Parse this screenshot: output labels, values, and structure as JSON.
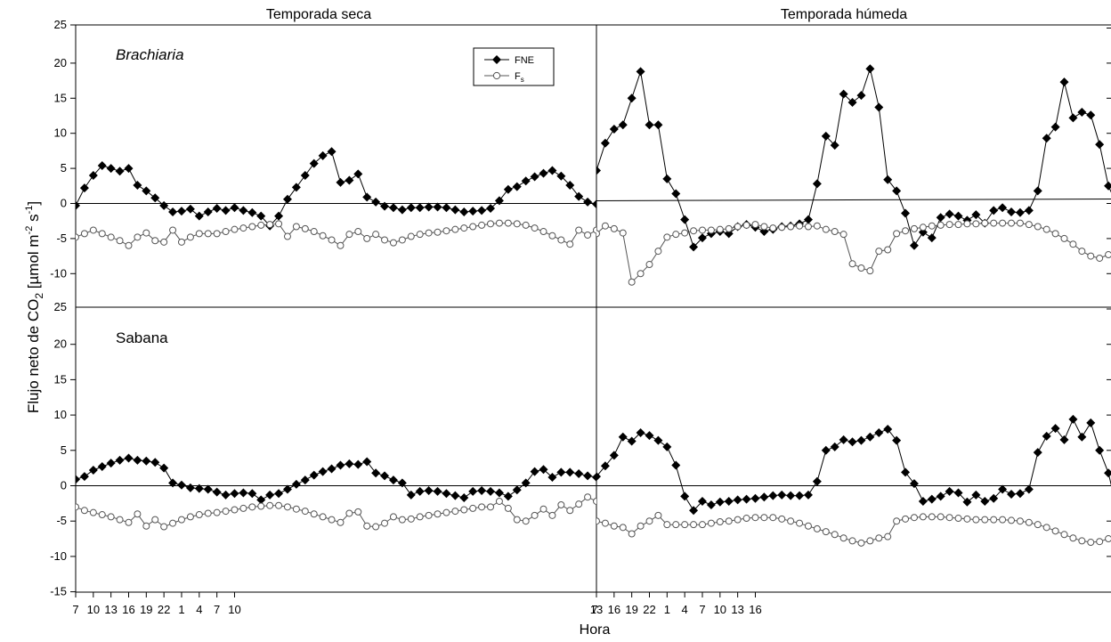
{
  "figure": {
    "xlabel": "Hora",
    "ylabel": "Flujo neto de CO2 [µmol m-2 s-1]",
    "ylabel_parts": {
      "pre": "Flujo neto de CO",
      "sub": "2",
      "mid": " [µmol m",
      "sup1": "-2",
      "mid2": " s",
      "sup2": "-1",
      "post": "]"
    },
    "column_titles": [
      "Temporada seca",
      "Temporada húmeda"
    ],
    "row_labels": [
      "Brachiaria",
      "Sabana"
    ],
    "legend": {
      "fne": "FNE",
      "fs_base": "F",
      "fs_sub": "s"
    },
    "x_tick_labels": [
      "7",
      "10",
      "13",
      "16",
      "19",
      "22",
      "1",
      "4",
      "7",
      "10",
      "13",
      "16",
      "19",
      "22",
      "1",
      "4",
      "7",
      "10",
      "13",
      "16"
    ],
    "top_y_ticks": [
      "25",
      "20",
      "15",
      "10",
      "5",
      "0",
      "-5",
      "-10"
    ],
    "bottom_y_ticks": [
      "25",
      "20",
      "15",
      "10",
      "5",
      "0",
      "-5",
      "-10",
      "-15"
    ],
    "colors": {
      "fne": "#000000",
      "fs": "#555555",
      "axis": "#000000"
    }
  },
  "chart_data": [
    {
      "type": "line",
      "title": "Temporada seca",
      "panel_label": "Brachiaria",
      "xlabel": "Hora",
      "ylim": [
        -12,
        25
      ],
      "x_start_hour": 7,
      "x_step_hours": 1.5,
      "series": [
        {
          "name": "FNE",
          "marker": "filled-diamond",
          "values": [
            -0.3,
            2.2,
            4.0,
            5.4,
            5.0,
            4.6,
            5.0,
            2.6,
            1.8,
            0.8,
            -0.3,
            -1.2,
            -1.1,
            -0.8,
            -1.8,
            -1.2,
            -0.7,
            -1.0,
            -0.6,
            -1.0,
            -1.3,
            -1.8,
            -3.2,
            -1.8,
            0.6,
            2.3,
            4.0,
            5.7,
            6.8,
            7.4,
            3.0,
            3.3,
            4.2,
            0.9,
            0.2,
            -0.4,
            -0.6,
            -0.9,
            -0.6,
            -0.6,
            -0.5,
            -0.5,
            -0.6,
            -0.9,
            -1.2,
            -1.1,
            -1.0,
            -0.7,
            0.4,
            2.0,
            2.4,
            3.2,
            3.8,
            4.3,
            4.7,
            3.9,
            2.6,
            1.0,
            0.2,
            -0.1
          ]
        },
        {
          "name": "Fs",
          "marker": "open-circle",
          "values": [
            -4.8,
            -4.3,
            -3.8,
            -4.3,
            -4.8,
            -5.3,
            -6.0,
            -4.8,
            -4.2,
            -5.3,
            -5.5,
            -3.8,
            -5.5,
            -4.8,
            -4.3,
            -4.3,
            -4.3,
            -4.0,
            -3.7,
            -3.5,
            -3.3,
            -3.1,
            -3.0,
            -2.9,
            -4.7,
            -3.3,
            -3.6,
            -4.0,
            -4.6,
            -5.2,
            -6.0,
            -4.4,
            -4.0,
            -5.0,
            -4.4,
            -5.2,
            -5.6,
            -5.2,
            -4.7,
            -4.4,
            -4.2,
            -4.1,
            -3.9,
            -3.7,
            -3.5,
            -3.3,
            -3.1,
            -2.9,
            -2.8,
            -2.8,
            -2.9,
            -3.1,
            -3.5,
            -4.0,
            -4.6,
            -5.2,
            -5.8,
            -3.8,
            -4.5,
            -3.8,
            -4.3,
            -4.8
          ]
        }
      ]
    },
    {
      "type": "line",
      "title": "Temporada húmeda",
      "panel_label": "Brachiaria",
      "xlabel": "Hora",
      "ylim": [
        -12,
        25
      ],
      "x_start_hour": 7,
      "x_step_hours": 1.5,
      "series": [
        {
          "name": "FNE",
          "marker": "filled-diamond",
          "values": [
            4.7,
            8.6,
            10.6,
            11.2,
            15.0,
            18.8,
            11.2,
            11.2,
            3.5,
            1.4,
            -2.3,
            -6.2,
            -4.9,
            -4.3,
            -4.0,
            -4.3,
            -3.3,
            -3.0,
            -3.4,
            -4.0,
            -3.7,
            -3.3,
            -3.2,
            -2.9,
            -2.3,
            2.8,
            9.6,
            8.3,
            15.6,
            14.4,
            15.4,
            19.2,
            13.7,
            3.4,
            1.8,
            -1.4,
            -6.0,
            -4.1,
            -4.9,
            -2.0,
            -1.5,
            -1.8,
            -2.4,
            -1.6,
            -2.8,
            -1.0,
            -0.6,
            -1.2,
            -1.3,
            -1.0,
            1.8,
            9.3,
            10.9,
            17.3,
            12.2,
            13.0,
            12.6,
            8.4,
            2.5,
            -0.3,
            -3.5
          ]
        },
        {
          "name": "Fs",
          "marker": "open-circle",
          "values": [
            -4.3,
            -3.2,
            -3.6,
            -4.2,
            -11.2,
            -10.0,
            -8.7,
            -6.8,
            -4.8,
            -4.4,
            -4.2,
            -3.9,
            -3.8,
            -3.8,
            -3.7,
            -3.6,
            -3.3,
            -3.1,
            -3.0,
            -3.3,
            -3.5,
            -3.4,
            -3.3,
            -3.2,
            -3.3,
            -3.2,
            -3.7,
            -4.0,
            -4.4,
            -8.6,
            -9.2,
            -9.6,
            -6.8,
            -6.6,
            -4.3,
            -3.9,
            -3.6,
            -3.4,
            -3.2,
            -3.1,
            -3.0,
            -3.0,
            -2.9,
            -2.9,
            -2.8,
            -2.8,
            -2.8,
            -2.8,
            -2.8,
            -3.0,
            -3.3,
            -3.7,
            -4.3,
            -5.0,
            -5.8,
            -6.8,
            -7.5,
            -7.8,
            -7.3,
            -6.4,
            -9.1,
            -10.0
          ]
        }
      ]
    },
    {
      "type": "line",
      "title": "Temporada seca",
      "panel_label": "Sabana",
      "xlabel": "Hora",
      "ylim": [
        -15,
        25
      ],
      "x_start_hour": 7,
      "x_step_hours": 1.5,
      "series": [
        {
          "name": "FNE",
          "marker": "filled-diamond",
          "values": [
            0.9,
            1.3,
            2.2,
            2.7,
            3.2,
            3.6,
            3.9,
            3.6,
            3.5,
            3.3,
            2.5,
            0.4,
            0.1,
            -0.3,
            -0.4,
            -0.5,
            -0.9,
            -1.3,
            -1.1,
            -1.0,
            -1.1,
            -2.0,
            -1.3,
            -1.1,
            -0.5,
            0.2,
            0.8,
            1.5,
            2.0,
            2.4,
            2.9,
            3.1,
            3.0,
            3.4,
            1.8,
            1.4,
            0.8,
            0.4,
            -1.3,
            -0.8,
            -0.7,
            -0.8,
            -1.1,
            -1.4,
            -1.7,
            -0.8,
            -0.7,
            -0.8,
            -1.0,
            -1.5,
            -0.6,
            0.4,
            2.0,
            2.3,
            1.2,
            1.9,
            1.9,
            1.7,
            1.4,
            1.2,
            0.6
          ]
        },
        {
          "name": "Fs",
          "marker": "open-circle",
          "values": [
            -3.0,
            -3.5,
            -3.8,
            -4.1,
            -4.4,
            -4.8,
            -5.2,
            -4.0,
            -5.7,
            -4.8,
            -5.8,
            -5.3,
            -4.8,
            -4.4,
            -4.1,
            -3.9,
            -3.8,
            -3.6,
            -3.4,
            -3.2,
            -3.0,
            -2.9,
            -2.8,
            -2.8,
            -3.0,
            -3.3,
            -3.6,
            -4.0,
            -4.4,
            -4.8,
            -5.2,
            -3.9,
            -3.7,
            -5.7,
            -5.8,
            -5.3,
            -4.4,
            -4.8,
            -4.7,
            -4.4,
            -4.2,
            -4.0,
            -3.8,
            -3.6,
            -3.4,
            -3.2,
            -3.0,
            -3.0,
            -2.2,
            -3.2,
            -4.8,
            -5.0,
            -4.2,
            -3.3,
            -4.2,
            -2.7,
            -3.5,
            -2.6,
            -1.6,
            -2.2,
            -2.4
          ]
        }
      ]
    },
    {
      "type": "line",
      "title": "Temporada húmeda",
      "panel_label": "Sabana",
      "xlabel": "Hora",
      "ylim": [
        -15,
        25
      ],
      "x_start_hour": 7,
      "x_step_hours": 1.5,
      "series": [
        {
          "name": "FNE",
          "marker": "filled-diamond",
          "values": [
            1.3,
            2.8,
            4.3,
            6.9,
            6.3,
            7.5,
            7.1,
            6.4,
            5.5,
            2.9,
            -1.5,
            -3.5,
            -2.2,
            -2.7,
            -2.3,
            -2.2,
            -2.0,
            -1.9,
            -1.8,
            -1.6,
            -1.4,
            -1.3,
            -1.4,
            -1.4,
            -1.3,
            0.6,
            5.0,
            5.5,
            6.5,
            6.2,
            6.4,
            6.9,
            7.5,
            8.0,
            6.4,
            1.9,
            0.3,
            -2.2,
            -1.9,
            -1.5,
            -0.8,
            -1.0,
            -2.3,
            -1.3,
            -2.2,
            -1.8,
            -0.5,
            -1.2,
            -1.1,
            -0.5,
            4.7,
            7.0,
            8.1,
            6.5,
            9.4,
            6.9,
            8.9,
            5.0,
            1.8,
            -3.5,
            -2.0
          ]
        },
        {
          "name": "Fs",
          "marker": "open-circle",
          "values": [
            -5.0,
            -5.3,
            -5.7,
            -5.9,
            -6.8,
            -5.7,
            -5.0,
            -4.2,
            -5.5,
            -5.5,
            -5.5,
            -5.5,
            -5.5,
            -5.3,
            -5.1,
            -5.0,
            -4.8,
            -4.6,
            -4.5,
            -4.5,
            -4.5,
            -4.7,
            -5.0,
            -5.3,
            -5.7,
            -6.1,
            -6.5,
            -6.9,
            -7.4,
            -7.8,
            -8.1,
            -7.8,
            -7.4,
            -7.2,
            -5.0,
            -4.7,
            -4.5,
            -4.4,
            -4.4,
            -4.4,
            -4.5,
            -4.6,
            -4.7,
            -4.8,
            -4.8,
            -4.8,
            -4.8,
            -4.9,
            -5.0,
            -5.2,
            -5.5,
            -5.9,
            -6.4,
            -6.9,
            -7.4,
            -7.8,
            -8.0,
            -7.9,
            -7.5,
            -6.9,
            -6.1
          ]
        }
      ]
    }
  ]
}
